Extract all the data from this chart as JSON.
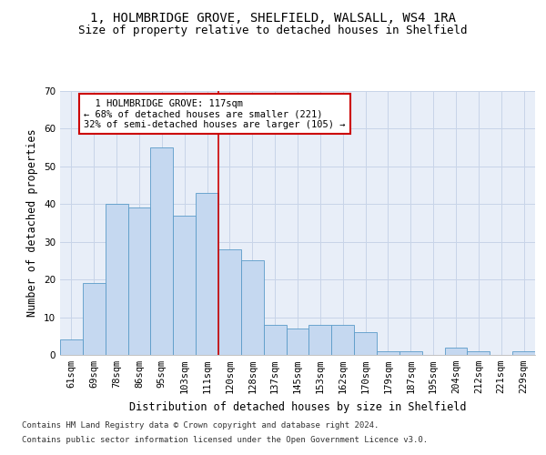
{
  "title_line1": "1, HOLMBRIDGE GROVE, SHELFIELD, WALSALL, WS4 1RA",
  "title_line2": "Size of property relative to detached houses in Shelfield",
  "xlabel": "Distribution of detached houses by size in Shelfield",
  "ylabel": "Number of detached properties",
  "categories": [
    "61sqm",
    "69sqm",
    "78sqm",
    "86sqm",
    "95sqm",
    "103sqm",
    "111sqm",
    "120sqm",
    "128sqm",
    "137sqm",
    "145sqm",
    "153sqm",
    "162sqm",
    "170sqm",
    "179sqm",
    "187sqm",
    "195sqm",
    "204sqm",
    "212sqm",
    "221sqm",
    "229sqm"
  ],
  "values": [
    4,
    19,
    40,
    39,
    55,
    37,
    43,
    28,
    25,
    8,
    7,
    8,
    8,
    6,
    1,
    1,
    0,
    2,
    1,
    0,
    1
  ],
  "bar_color": "#c5d8f0",
  "bar_edge_color": "#5a9bc8",
  "grid_color": "#c8d4e8",
  "background_color": "#e8eef8",
  "annotation_line1": "  1 HOLMBRIDGE GROVE: 117sqm",
  "annotation_line2": "← 68% of detached houses are smaller (221)",
  "annotation_line3": "32% of semi-detached houses are larger (105) →",
  "annotation_box_color": "#ffffff",
  "annotation_box_edge": "#cc0000",
  "vline_x_index": 6.5,
  "vline_color": "#cc0000",
  "ylim": [
    0,
    70
  ],
  "yticks": [
    0,
    10,
    20,
    30,
    40,
    50,
    60,
    70
  ],
  "footnote1": "Contains HM Land Registry data © Crown copyright and database right 2024.",
  "footnote2": "Contains public sector information licensed under the Open Government Licence v3.0.",
  "title_fontsize": 10,
  "subtitle_fontsize": 9,
  "axis_label_fontsize": 8.5,
  "tick_fontsize": 7.5,
  "annotation_fontsize": 7.5,
  "footnote_fontsize": 6.5
}
